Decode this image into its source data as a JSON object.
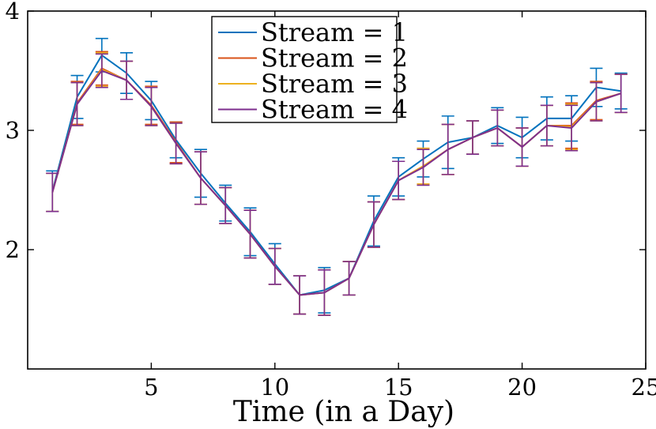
{
  "chart_data": {
    "type": "line",
    "title": "",
    "xlabel": "Time (in a Day)",
    "ylabel": "",
    "xlim": [
      0,
      25
    ],
    "ylim": [
      1,
      4
    ],
    "xticks": [
      5,
      10,
      15,
      20,
      25
    ],
    "yticks": [
      2,
      3,
      4
    ],
    "xtick_labels": [
      "5",
      "10",
      "15",
      "20",
      "25"
    ],
    "ytick_labels": [
      "2",
      "3",
      "4"
    ],
    "grid": false,
    "legend_position": "top-center",
    "error_bars": true,
    "x": [
      1,
      2,
      3,
      4,
      5,
      6,
      7,
      8,
      9,
      10,
      11,
      12,
      13,
      14,
      15,
      16,
      17,
      18,
      19,
      20,
      21,
      22,
      23,
      24
    ],
    "series": [
      {
        "name": "Stream = 1",
        "color": "#0072BD",
        "values": [
          2.49,
          3.28,
          3.63,
          3.48,
          3.25,
          2.92,
          2.64,
          2.39,
          2.15,
          1.88,
          1.62,
          1.66,
          1.76,
          2.24,
          2.61,
          2.76,
          2.9,
          2.94,
          3.04,
          2.94,
          3.1,
          3.1,
          3.36,
          3.33
        ],
        "error": [
          0.17,
          0.18,
          0.14,
          0.17,
          0.16,
          0.15,
          0.2,
          0.15,
          0.2,
          0.17,
          0.16,
          0.19,
          0.14,
          0.21,
          0.16,
          0.15,
          0.22,
          0.14,
          0.15,
          0.17,
          0.18,
          0.19,
          0.16,
          0.15
        ]
      },
      {
        "name": "Stream = 2",
        "color": "#D95319",
        "values": [
          2.48,
          3.23,
          3.52,
          3.42,
          3.21,
          2.9,
          2.6,
          2.37,
          2.13,
          1.86,
          1.62,
          1.64,
          1.76,
          2.21,
          2.58,
          2.7,
          2.84,
          2.94,
          3.02,
          2.86,
          3.04,
          3.04,
          3.25,
          3.31
        ],
        "error": [
          0.16,
          0.18,
          0.14,
          0.16,
          0.16,
          0.17,
          0.22,
          0.15,
          0.2,
          0.15,
          0.16,
          0.19,
          0.14,
          0.19,
          0.16,
          0.15,
          0.21,
          0.14,
          0.15,
          0.16,
          0.17,
          0.19,
          0.16,
          0.16
        ]
      },
      {
        "name": "Stream = 3",
        "color": "#EDB120",
        "values": [
          2.48,
          3.22,
          3.51,
          3.42,
          3.2,
          2.89,
          2.6,
          2.37,
          2.13,
          1.86,
          1.62,
          1.64,
          1.76,
          2.21,
          2.58,
          2.7,
          2.84,
          2.94,
          3.02,
          2.86,
          3.04,
          3.03,
          3.24,
          3.31
        ],
        "error": [
          0.16,
          0.18,
          0.14,
          0.16,
          0.16,
          0.17,
          0.22,
          0.15,
          0.2,
          0.15,
          0.16,
          0.19,
          0.14,
          0.19,
          0.16,
          0.15,
          0.21,
          0.14,
          0.15,
          0.16,
          0.17,
          0.19,
          0.16,
          0.16
        ]
      },
      {
        "name": "Stream = 4",
        "color": "#7E2F8E",
        "values": [
          2.48,
          3.22,
          3.5,
          3.42,
          3.2,
          2.89,
          2.6,
          2.37,
          2.13,
          1.86,
          1.62,
          1.64,
          1.76,
          2.21,
          2.58,
          2.69,
          2.84,
          2.94,
          3.02,
          2.86,
          3.04,
          3.02,
          3.24,
          3.31
        ],
        "error": [
          0.16,
          0.18,
          0.14,
          0.16,
          0.16,
          0.17,
          0.22,
          0.15,
          0.2,
          0.15,
          0.16,
          0.19,
          0.14,
          0.19,
          0.16,
          0.15,
          0.21,
          0.14,
          0.15,
          0.16,
          0.17,
          0.19,
          0.16,
          0.16
        ]
      }
    ]
  }
}
